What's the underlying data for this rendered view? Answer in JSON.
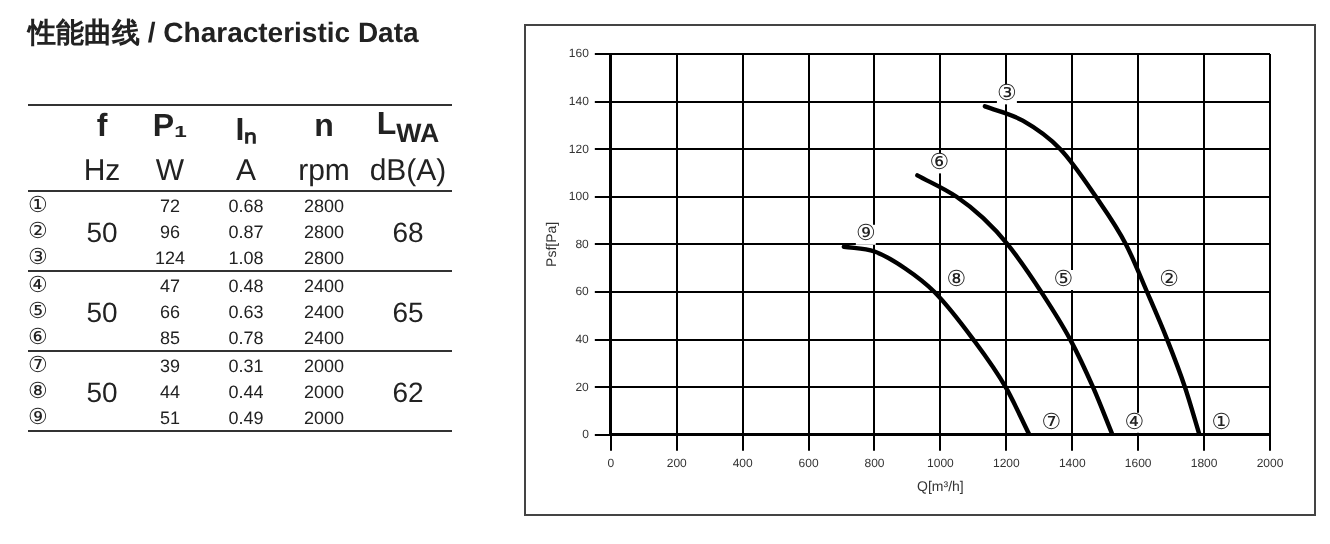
{
  "chart_data": {
    "type": "line",
    "title": "性能曲线  /  Characteristic Data",
    "xlabel": "Q[m³/h]",
    "ylabel": "Psf[Pa]",
    "xlim": [
      0,
      2000
    ],
    "xticks": [
      0,
      200,
      400,
      600,
      800,
      1000,
      1200,
      1400,
      1600,
      1800,
      2000
    ],
    "ylim": [
      0,
      160
    ],
    "yticks": [
      0,
      20,
      40,
      60,
      80,
      100,
      120,
      140,
      160
    ],
    "grid": true,
    "legend": false,
    "marker": "none",
    "line_style": "solid",
    "series": [
      {
        "color": "#000000",
        "x": [
          1135,
          1250,
          1364,
          1472,
          1563,
          1627,
          1688,
          1742,
          1786
        ],
        "values": [
          138,
          132,
          120,
          100,
          80,
          60,
          40,
          20,
          0
        ]
      },
      {
        "color": "#000000",
        "x": [
          930,
          1049,
          1130,
          1204,
          1306,
          1394,
          1463,
          1522
        ],
        "values": [
          109,
          100,
          91,
          80,
          60,
          40,
          20,
          0
        ]
      },
      {
        "color": "#000000",
        "x": [
          707,
          800,
          892,
          982,
          1100,
          1198,
          1270
        ],
        "values": [
          79,
          77,
          70,
          60,
          40,
          20,
          0
        ]
      }
    ],
    "annotations": [
      "f",
      "P₁",
      "Iₙ",
      "n",
      "L$_{WA}$",
      "Hz",
      "W",
      "A",
      "rpm",
      "dB(A)",
      "①",
      "72",
      "0.68",
      "2800",
      "②",
      "96",
      "0.87",
      "2800",
      "③",
      "124",
      "1.08",
      "2800",
      "④",
      "47",
      "0.48",
      "2400",
      "⑤",
      "66",
      "0.63",
      "2400",
      "⑥",
      "85",
      "0.78",
      "2400",
      "⑦",
      "39",
      "0.31",
      "2000",
      "⑧",
      "44",
      "0.44",
      "2000",
      "⑨",
      "51",
      "0.49",
      "2000",
      "50",
      "68",
      "50",
      "65",
      "50",
      "62",
      {
        "text": "①",
        "x": 1786,
        "y": 0
      },
      {
        "text": "②",
        "x": 1627,
        "y": 60
      },
      {
        "text": "③",
        "x": 1135,
        "y": 138
      },
      {
        "text": "④",
        "x": 1522,
        "y": 0
      },
      {
        "text": "⑤",
        "x": 1306,
        "y": 60
      },
      {
        "text": "⑥",
        "x": 930,
        "y": 109
      },
      {
        "text": "⑦",
        "x": 1270,
        "y": 0
      },
      {
        "text": "⑧",
        "x": 982,
        "y": 60
      },
      {
        "text": "⑨",
        "x": 707,
        "y": 79
      }
    ]
  }
}
